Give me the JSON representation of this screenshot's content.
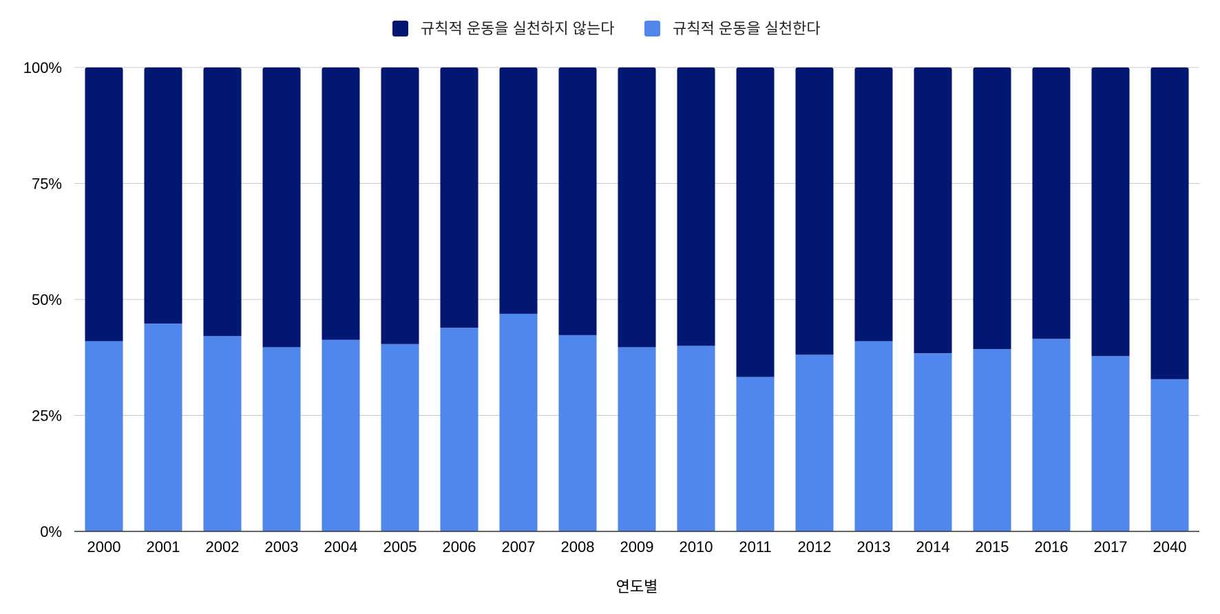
{
  "chart_data": {
    "type": "bar",
    "stacked": true,
    "normalized": true,
    "categories": [
      "2000",
      "2001",
      "2002",
      "2003",
      "2004",
      "2005",
      "2006",
      "2007",
      "2008",
      "2009",
      "2010",
      "2011",
      "2012",
      "2013",
      "2014",
      "2015",
      "2016",
      "2017",
      "2040"
    ],
    "series": [
      {
        "name": "규칙적 운동을 실천한다",
        "color": "#5087ec",
        "values": [
          41.0,
          44.8,
          42.1,
          39.7,
          41.3,
          40.4,
          43.9,
          46.9,
          42.3,
          39.7,
          40.0,
          33.3,
          38.1,
          41.0,
          38.4,
          39.3,
          41.5,
          37.8,
          32.8
        ]
      },
      {
        "name": "규칙적 운동을 실천하지 않는다",
        "color": "#011771",
        "values": [
          59.0,
          55.2,
          57.9,
          60.3,
          58.7,
          59.6,
          56.1,
          53.1,
          57.7,
          60.3,
          60.0,
          66.7,
          61.9,
          59.0,
          61.6,
          60.7,
          58.5,
          62.2,
          67.2
        ]
      }
    ],
    "legend": [
      {
        "label": "규칙적 운동을 실천하지 않는다",
        "color": "#011771"
      },
      {
        "label": "규칙적 운동을 실천한다",
        "color": "#5087ec"
      }
    ],
    "legend_position": "top-center",
    "xlabel": "연도별",
    "ylabel": "",
    "ylim": [
      0,
      100
    ],
    "yticks": [
      "0%",
      "25%",
      "50%",
      "75%",
      "100%"
    ],
    "grid": true
  }
}
